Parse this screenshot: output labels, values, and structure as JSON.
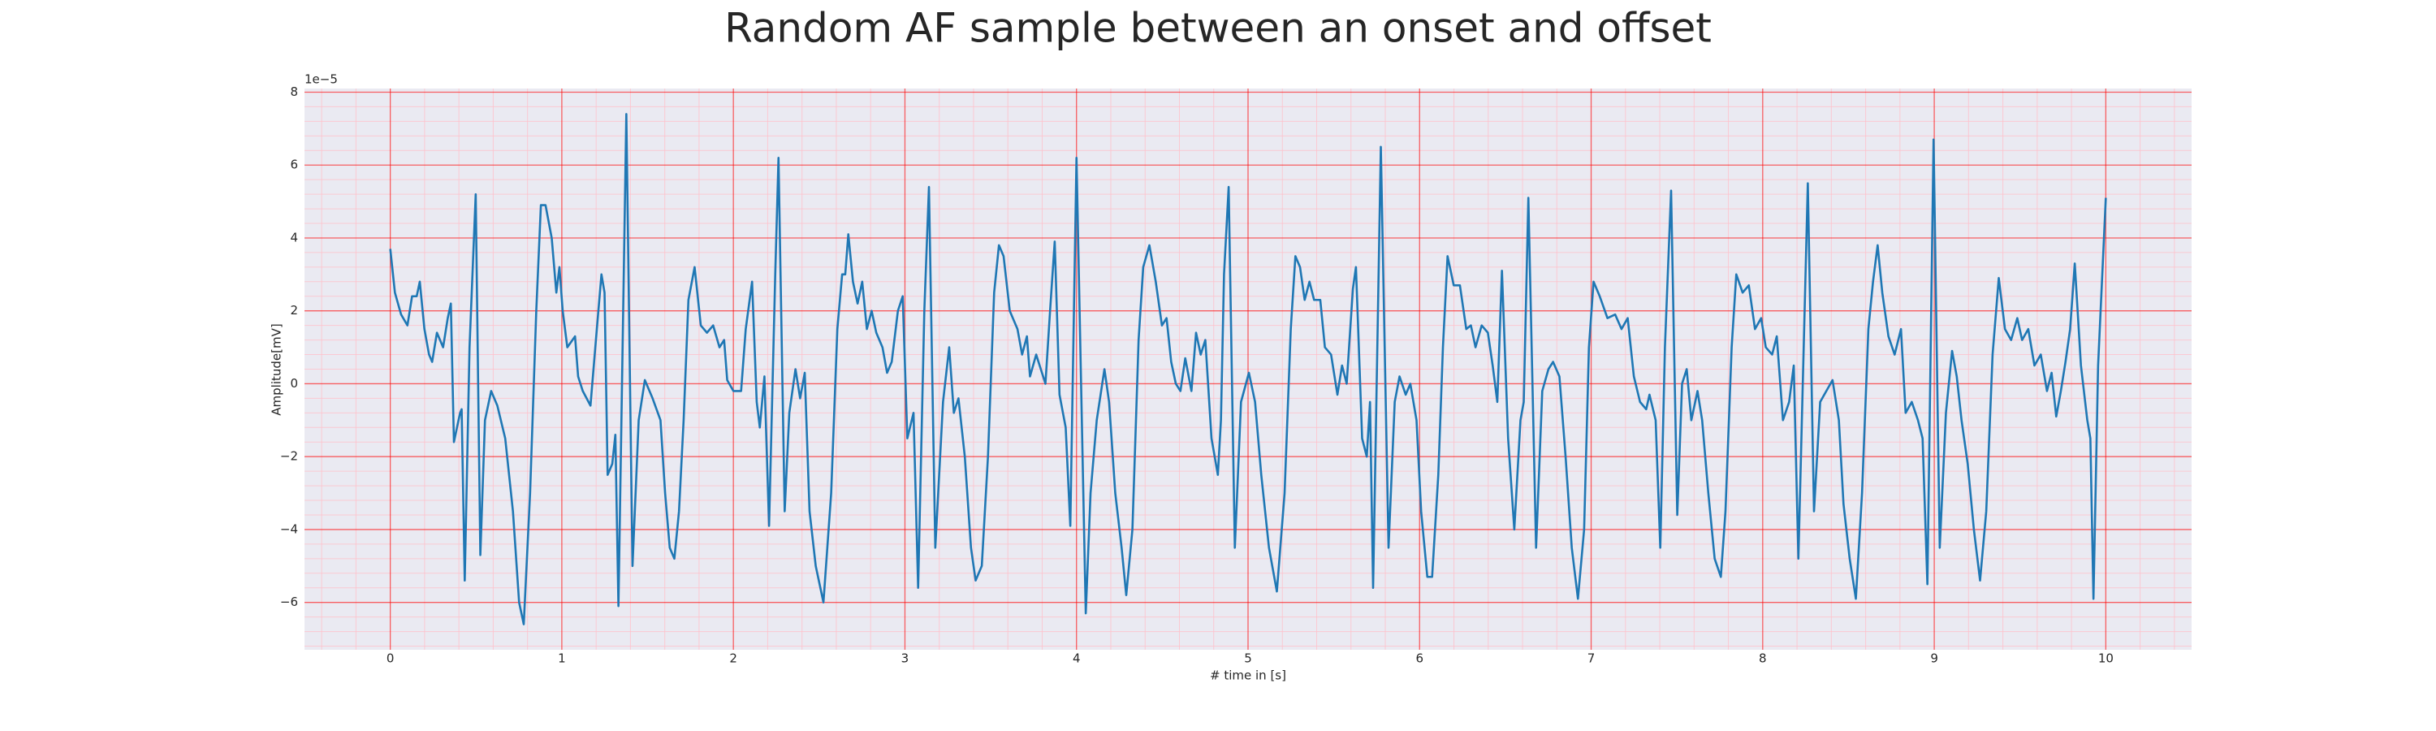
{
  "chart_data": {
    "type": "line",
    "title": "Random AF sample between an onset and offset",
    "xlabel": "# time in [s]",
    "ylabel": "Amplitude[mV]",
    "y_offset_label": "1e−5",
    "color": "#1f77b4",
    "grid": true,
    "minor_grid": true,
    "xlim": [
      -0.5,
      10.5
    ],
    "ylim": [
      -7.3,
      8.1
    ],
    "xticks": [
      0,
      1,
      2,
      3,
      4,
      5,
      6,
      7,
      8,
      9,
      10
    ],
    "yticks": [
      {
        "value": -6,
        "label": "−6"
      },
      {
        "value": -4,
        "label": "−4"
      },
      {
        "value": -2,
        "label": "−2"
      },
      0,
      2,
      4,
      6,
      8
    ],
    "x": [
      0,
      0.027,
      0.063,
      0.1,
      0.127,
      0.154,
      0.172,
      0.199,
      0.226,
      0.244,
      0.272,
      0.308,
      0.335,
      0.353,
      0.371,
      0.389,
      0.407,
      0.416,
      0.434,
      0.462,
      0.498,
      0.525,
      0.552,
      0.588,
      0.624,
      0.67,
      0.715,
      0.751,
      0.778,
      0.815,
      0.851,
      0.878,
      0.905,
      0.941,
      0.968,
      0.986,
      1.005,
      1.032,
      1.077,
      1.095,
      1.122,
      1.167,
      1.204,
      1.231,
      1.249,
      1.267,
      1.294,
      1.312,
      1.33,
      1.376,
      1.412,
      1.448,
      1.484,
      1.529,
      1.575,
      1.602,
      1.629,
      1.656,
      1.683,
      1.71,
      1.738,
      1.774,
      1.81,
      1.846,
      1.882,
      1.919,
      1.946,
      1.964,
      2.0,
      2.045,
      2.072,
      2.109,
      2.136,
      2.154,
      2.181,
      2.208,
      2.244,
      2.263,
      2.299,
      2.326,
      2.362,
      2.389,
      2.416,
      2.444,
      2.48,
      2.525,
      2.57,
      2.606,
      2.634,
      2.652,
      2.67,
      2.697,
      2.724,
      2.751,
      2.778,
      2.806,
      2.833,
      2.869,
      2.896,
      2.923,
      2.959,
      2.987,
      3.014,
      3.05,
      3.077,
      3.113,
      3.14,
      3.177,
      3.222,
      3.258,
      3.285,
      3.312,
      3.349,
      3.385,
      3.412,
      3.448,
      3.484,
      3.52,
      3.548,
      3.575,
      3.611,
      3.656,
      3.683,
      3.711,
      3.729,
      3.765,
      3.792,
      3.819,
      3.846,
      3.873,
      3.901,
      3.937,
      3.964,
      4.0,
      4.054,
      4.082,
      4.118,
      4.163,
      4.19,
      4.226,
      4.263,
      4.29,
      4.326,
      4.362,
      4.389,
      4.425,
      4.462,
      4.498,
      4.525,
      4.552,
      4.579,
      4.606,
      4.634,
      4.67,
      4.697,
      4.724,
      4.751,
      4.787,
      4.824,
      4.842,
      4.86,
      4.887,
      4.923,
      4.959,
      5.005,
      5.041,
      5.077,
      5.122,
      5.168,
      5.213,
      5.249,
      5.276,
      5.303,
      5.33,
      5.358,
      5.385,
      5.421,
      5.448,
      5.484,
      5.521,
      5.548,
      5.575,
      5.611,
      5.629,
      5.665,
      5.692,
      5.711,
      5.729,
      5.774,
      5.819,
      5.855,
      5.883,
      5.919,
      5.946,
      5.982,
      6.009,
      6.045,
      6.073,
      6.109,
      6.136,
      6.163,
      6.199,
      6.235,
      6.272,
      6.299,
      6.326,
      6.362,
      6.398,
      6.426,
      6.453,
      6.48,
      6.516,
      6.552,
      6.588,
      6.607,
      6.634,
      6.679,
      6.715,
      6.751,
      6.778,
      6.815,
      6.851,
      6.887,
      6.923,
      6.959,
      6.987,
      7.014,
      7.05,
      7.095,
      7.14,
      7.177,
      7.213,
      7.249,
      7.285,
      7.321,
      7.34,
      7.376,
      7.403,
      7.43,
      7.466,
      7.502,
      7.53,
      7.557,
      7.584,
      7.62,
      7.647,
      7.683,
      7.72,
      7.756,
      7.783,
      7.819,
      7.846,
      7.883,
      7.919,
      7.955,
      7.991,
      8.018,
      8.055,
      8.082,
      8.118,
      8.154,
      8.181,
      8.208,
      8.263,
      8.299,
      8.335,
      8.371,
      8.407,
      8.444,
      8.471,
      8.507,
      8.543,
      8.579,
      8.616,
      8.643,
      8.67,
      8.697,
      8.733,
      8.769,
      8.806,
      8.833,
      8.869,
      8.905,
      8.932,
      8.96,
      8.996,
      9.032,
      9.068,
      9.104,
      9.131,
      9.159,
      9.195,
      9.231,
      9.267,
      9.303,
      9.34,
      9.376,
      9.412,
      9.448,
      9.484,
      9.512,
      9.548,
      9.584,
      9.621,
      9.657,
      9.684,
      9.711,
      9.738,
      9.765,
      9.792,
      9.819,
      9.855,
      9.892,
      9.91,
      9.928,
      9.955,
      10.0
    ],
    "values": [
      3.7,
      2.5,
      1.9,
      1.6,
      2.4,
      2.4,
      2.8,
      1.5,
      0.8,
      0.6,
      1.4,
      1.0,
      1.8,
      2.2,
      -1.6,
      -1.2,
      -0.8,
      -0.7,
      -5.4,
      1.0,
      5.2,
      -4.7,
      -1.0,
      -0.2,
      -0.6,
      -1.5,
      -3.5,
      -6.0,
      -6.6,
      -3,
      2,
      4.9,
      4.9,
      4.0,
      2.5,
      3.2,
      2.0,
      1.0,
      1.3,
      0.2,
      -0.2,
      -0.6,
      1.5,
      3.0,
      2.5,
      -2.5,
      -2.2,
      -1.4,
      -6.1,
      7.4,
      -5.0,
      -1.0,
      0.1,
      -0.4,
      -1.0,
      -3.0,
      -4.5,
      -4.8,
      -3.5,
      -1.0,
      2.3,
      3.2,
      1.6,
      1.4,
      1.6,
      1.0,
      1.2,
      0.1,
      -0.2,
      -0.2,
      1.5,
      2.8,
      -0.5,
      -1.2,
      0.2,
      -3.9,
      3.0,
      6.2,
      -3.5,
      -0.8,
      0.4,
      -0.4,
      0.3,
      -3.5,
      -5.0,
      -6.0,
      -3,
      1.5,
      3.0,
      3.0,
      4.1,
      2.8,
      2.2,
      2.8,
      1.5,
      2.0,
      1.4,
      1.0,
      0.3,
      0.6,
      2.0,
      2.4,
      -1.5,
      -0.8,
      -5.6,
      2.0,
      5.4,
      -4.5,
      -0.5,
      1.0,
      -0.8,
      -0.4,
      -2.0,
      -4.5,
      -5.4,
      -5.0,
      -2.0,
      2.5,
      3.8,
      3.5,
      2.0,
      1.5,
      0.8,
      1.3,
      0.2,
      0.8,
      0.4,
      0.0,
      2.0,
      3.9,
      -0.3,
      -1.2,
      -3.9,
      6.2,
      -6.3,
      -3,
      -1.0,
      0.4,
      -0.5,
      -3.0,
      -4.5,
      -5.8,
      -4,
      1.2,
      3.2,
      3.8,
      2.8,
      1.6,
      1.8,
      0.6,
      0,
      -0.2,
      0.7,
      -0.2,
      1.4,
      0.8,
      1.2,
      -1.5,
      -2.5,
      -1.0,
      3.0,
      5.4,
      -4.5,
      -0.5,
      0.3,
      -0.5,
      -2.5,
      -4.5,
      -5.7,
      -3,
      1.5,
      3.5,
      3.2,
      2.3,
      2.8,
      2.3,
      2.3,
      1.0,
      0.8,
      -0.3,
      0.5,
      0,
      2.6,
      3.2,
      -1.5,
      -2.0,
      -0.5,
      -5.6,
      6.5,
      -4.5,
      -0.5,
      0.2,
      -0.3,
      0.0,
      -1.0,
      -3.5,
      -5.3,
      -5.3,
      -2.5,
      1.0,
      3.5,
      2.7,
      2.7,
      1.5,
      1.6,
      1.0,
      1.6,
      1.4,
      0.5,
      -0.5,
      3.1,
      -1.5,
      -4.0,
      -1.0,
      -0.5,
      5.1,
      -4.5,
      -0.2,
      0.4,
      0.6,
      0.2,
      -2.0,
      -4.5,
      -5.9,
      -4,
      1.0,
      2.8,
      2.4,
      1.8,
      1.9,
      1.5,
      1.8,
      0.2,
      -0.5,
      -0.7,
      -0.3,
      -1.0,
      -4.5,
      1.0,
      5.3,
      -3.6,
      0,
      0.4,
      -1.0,
      -0.2,
      -1.0,
      -3.0,
      -4.8,
      -5.3,
      -3.5,
      1.0,
      3.0,
      2.5,
      2.7,
      1.5,
      1.8,
      1.0,
      0.8,
      1.3,
      -1.0,
      -0.5,
      0.5,
      -4.8,
      5.5,
      -3.5,
      -0.5,
      -0.2,
      0.1,
      -1.0,
      -3.3,
      -4.8,
      -5.9,
      -3,
      1.5,
      2.8,
      3.8,
      2.5,
      1.3,
      0.8,
      1.5,
      -0.8,
      -0.5,
      -1.0,
      -1.5,
      -5.5,
      6.7,
      -4.5,
      -0.8,
      0.9,
      0.2,
      -1.0,
      -2.2,
      -4.0,
      -5.4,
      -3.5,
      0.8,
      2.9,
      1.5,
      1.2,
      1.8,
      1.2,
      1.5,
      0.5,
      0.8,
      -0.2,
      0.3,
      -0.9,
      -0.2,
      0.6,
      1.5,
      3.3,
      0.5,
      -1.0,
      -1.5,
      -5.9,
      0.5,
      5.1
    ]
  }
}
